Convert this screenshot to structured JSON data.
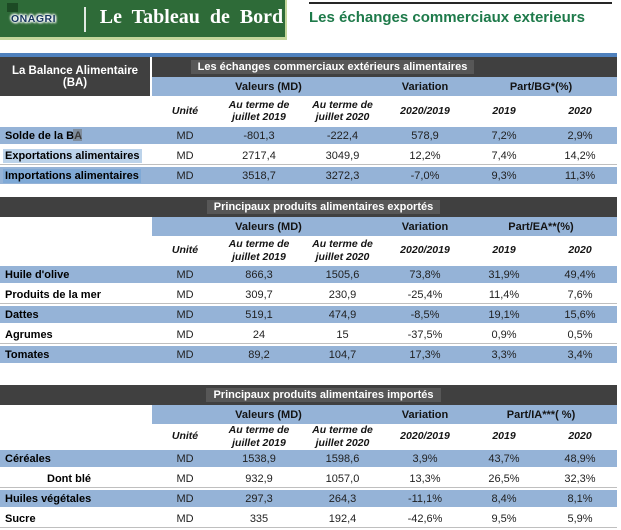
{
  "colors": {
    "banner_green": "#2e6b38",
    "banner_edge": "#c3d69b",
    "header_gray": "#404040",
    "accent_blue": "#4f81bd",
    "row_blue": "#95b3d7",
    "title_green": "#1e7a4a"
  },
  "banner": {
    "logo": "ONAGRI",
    "title": "Le Tableau de Bord"
  },
  "page": {
    "title": "Les échanges commerciaux exterieurs"
  },
  "tables": [
    {
      "corner_label": "La Balance Alimentaire (BA)",
      "title": "Les échanges commerciaux extérieurs alimentaires",
      "groups": {
        "values": "Valeurs (MD)",
        "variation": "Variation",
        "part": "Part/BG*(%)"
      },
      "cols": {
        "unit": "Unité",
        "v2019": "Au terme de juillet 2019",
        "v2020": "Au terme de juillet 2020",
        "variation": "2020/2019",
        "p2019": "2019",
        "p2020": "2020"
      },
      "rows": [
        {
          "label": "Solde de la BA",
          "unit": "MD",
          "v2019": "-801,3",
          "v2020": "-222,4",
          "variation": "578,9",
          "p2019": "7,2%",
          "p2020": "2,9%",
          "shade": true,
          "cursor": true
        },
        {
          "label": "Exportations alimentaires",
          "unit": "MD",
          "v2019": "2717,4",
          "v2020": "3049,9",
          "variation": "12,2%",
          "p2019": "7,4%",
          "p2020": "14,2%",
          "hl": "light"
        },
        {
          "label": "Importations alimentaires",
          "unit": "MD",
          "v2019": "3518,7",
          "v2020": "3272,3",
          "variation": "-7,0%",
          "p2019": "9,3%",
          "p2020": "11,3%",
          "shade": true,
          "hl": "mid"
        }
      ]
    },
    {
      "title": "Principaux produits alimentaires exportés",
      "groups": {
        "values": "Valeurs (MD)",
        "variation": "Variation",
        "part": "Part/EA**(%)"
      },
      "cols": {
        "unit": "Unité",
        "v2019": "Au terme de juillet 2019",
        "v2020": "Au terme de juillet 2020",
        "variation": "2020/2019",
        "p2019": "2019",
        "p2020": "2020"
      },
      "rows": [
        {
          "label": "Huile d'olive",
          "unit": "MD",
          "v2019": "866,3",
          "v2020": "1505,6",
          "variation": "73,8%",
          "p2019": "31,9%",
          "p2020": "49,4%",
          "shade": true
        },
        {
          "label": "Produits de la mer",
          "unit": "MD",
          "v2019": "309,7",
          "v2020": "230,9",
          "variation": "-25,4%",
          "p2019": "11,4%",
          "p2020": "7,6%"
        },
        {
          "label": "Dattes",
          "unit": "MD",
          "v2019": "519,1",
          "v2020": "474,9",
          "variation": "-8,5%",
          "p2019": "19,1%",
          "p2020": "15,6%",
          "shade": true
        },
        {
          "label": "Agrumes",
          "unit": "MD",
          "v2019": "24",
          "v2020": "15",
          "variation": "-37,5%",
          "p2019": "0,9%",
          "p2020": "0,5%"
        },
        {
          "label": "Tomates",
          "unit": "MD",
          "v2019": "89,2",
          "v2020": "104,7",
          "variation": "17,3%",
          "p2019": "3,3%",
          "p2020": "3,4%",
          "shade": true
        }
      ]
    },
    {
      "title": "Principaux produits alimentaires importés",
      "groups": {
        "values": "Valeurs (MD)",
        "variation": "Variation",
        "part": "Part/IA***( %)"
      },
      "cols": {
        "unit": "Unité",
        "v2019": "Au terme de juillet 2019",
        "v2020": "Au terme de juillet 2020",
        "variation": "2020/2019",
        "p2019": "2019",
        "p2020": "2020"
      },
      "rows": [
        {
          "label": "Céréales",
          "unit": "MD",
          "v2019": "1538,9",
          "v2020": "1598,6",
          "variation": "3,9%",
          "p2019": "43,7%",
          "p2020": "48,9%",
          "shade": true
        },
        {
          "label": "Dont blé",
          "unit": "MD",
          "v2019": "932,9",
          "v2020": "1057,0",
          "variation": "13,3%",
          "p2019": "26,5%",
          "p2020": "32,3%",
          "indent": true
        },
        {
          "label": "Huiles végétales",
          "unit": "MD",
          "v2019": "297,3",
          "v2020": "264,3",
          "variation": "-11,1%",
          "p2019": "8,4%",
          "p2020": "8,1%",
          "shade": true
        },
        {
          "label": "Sucre",
          "unit": "MD",
          "v2019": "335",
          "v2020": "192,4",
          "variation": "-42,6%",
          "p2019": "9,5%",
          "p2020": "5,9%"
        }
      ]
    }
  ]
}
